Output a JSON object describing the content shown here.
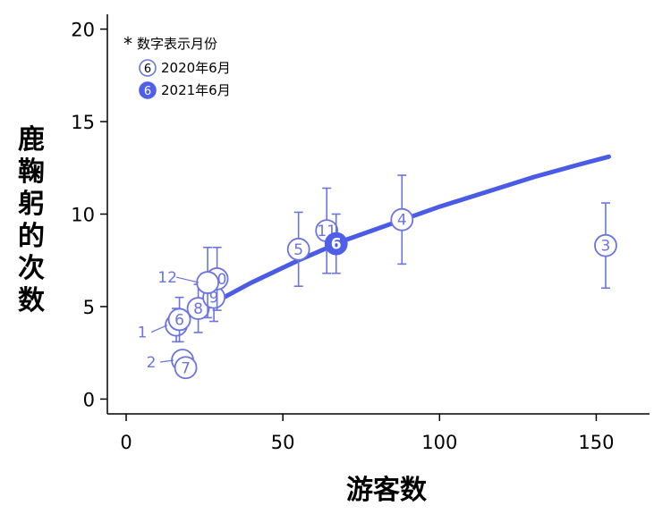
{
  "chart_data": {
    "type": "scatter",
    "xlabel": "游客数",
    "ylabel": "鹿鞠躬的次数",
    "xlim": [
      -6,
      167
    ],
    "ylim": [
      -0.8,
      20.8
    ],
    "xticks": [
      0,
      50,
      100,
      150
    ],
    "yticks": [
      0,
      5,
      10,
      15,
      20
    ],
    "legend": {
      "position": "top-left",
      "title": "数字表示月份",
      "title_marker": "*",
      "entries": [
        {
          "label": "2020年6月",
          "marker": "6",
          "filled": false
        },
        {
          "label": "2021年6月",
          "marker": "6",
          "filled": true
        }
      ]
    },
    "colors": {
      "accent": "#4f5fe8",
      "point": "#6b74e0",
      "fit": "#4a5be6"
    },
    "series": [
      {
        "points": [
          {
            "month": "1",
            "x": 16,
            "y": 4.0,
            "err": 0.9
          },
          {
            "month": "2",
            "x": 18,
            "y": 2.1,
            "err": 0
          },
          {
            "month": "3",
            "x": 153,
            "y": 8.3,
            "err": 2.3
          },
          {
            "month": "4",
            "x": 88,
            "y": 9.7,
            "err": 2.4
          },
          {
            "month": "5",
            "x": 55,
            "y": 8.1,
            "err": 2.0
          },
          {
            "month": "6",
            "x": 17,
            "y": 4.3,
            "err": 1.2
          },
          {
            "month": "7",
            "x": 19,
            "y": 1.7,
            "err": 0
          },
          {
            "month": "8",
            "x": 23,
            "y": 4.9,
            "err": 1.3
          },
          {
            "month": "9",
            "x": 28,
            "y": 5.5,
            "err": 1.3
          },
          {
            "month": "10",
            "x": 29,
            "y": 6.5,
            "err": 1.7
          },
          {
            "month": "11",
            "x": 64,
            "y": 9.1,
            "err": 2.3
          },
          {
            "month": "12",
            "x": 26,
            "y": 6.3,
            "err": 1.9
          }
        ]
      },
      {
        "points": [
          {
            "month": "6",
            "x": 67,
            "y": 8.4,
            "err": 1.6
          }
        ]
      }
    ],
    "fit_line": [
      {
        "x": 29,
        "y": 5.3
      },
      {
        "x": 40,
        "y": 6.3
      },
      {
        "x": 55,
        "y": 7.5
      },
      {
        "x": 70,
        "y": 8.6
      },
      {
        "x": 85,
        "y": 9.5
      },
      {
        "x": 100,
        "y": 10.4
      },
      {
        "x": 115,
        "y": 11.2
      },
      {
        "x": 130,
        "y": 12.0
      },
      {
        "x": 145,
        "y": 12.7
      },
      {
        "x": 154,
        "y": 13.1
      }
    ]
  }
}
